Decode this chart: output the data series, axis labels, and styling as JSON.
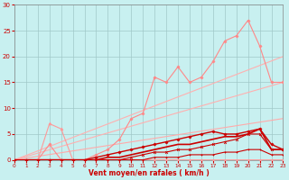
{
  "bg_color": "#c8f0f0",
  "grid_color": "#a0c8c8",
  "xlabel": "Vent moyen/en rafales ( km/h )",
  "xlim": [
    0,
    23
  ],
  "ylim": [
    0,
    30
  ],
  "yticks": [
    0,
    5,
    10,
    15,
    20,
    25,
    30
  ],
  "xticks": [
    0,
    1,
    2,
    3,
    4,
    5,
    6,
    7,
    8,
    9,
    10,
    11,
    12,
    13,
    14,
    15,
    16,
    17,
    18,
    19,
    20,
    21,
    22,
    23
  ],
  "series": [
    {
      "x": [
        0,
        23
      ],
      "y": [
        0,
        15
      ],
      "color": "#ffb0b0",
      "lw": 0.8,
      "marker": null,
      "ms": 0
    },
    {
      "x": [
        0,
        23
      ],
      "y": [
        0,
        20
      ],
      "color": "#ffb0b0",
      "lw": 0.8,
      "marker": null,
      "ms": 0
    },
    {
      "x": [
        0,
        1,
        2,
        3,
        4,
        5,
        6,
        7,
        8,
        9,
        10,
        11,
        12,
        13,
        14,
        15,
        16,
        17,
        18,
        19,
        20,
        21,
        22,
        23
      ],
      "y": [
        0,
        0,
        0,
        3,
        0,
        0,
        0,
        1,
        2,
        4,
        8,
        9,
        16,
        15,
        18,
        15,
        16,
        19,
        23,
        24,
        27,
        22,
        15,
        15
      ],
      "color": "#ff8888",
      "lw": 0.8,
      "marker": "D",
      "ms": 1.5
    },
    {
      "x": [
        0,
        1,
        2,
        3,
        4,
        5,
        6,
        7,
        8,
        9,
        10,
        11,
        12,
        13,
        14,
        15,
        16,
        17,
        18,
        19,
        20,
        21,
        22,
        23
      ],
      "y": [
        0,
        0,
        0,
        7,
        6,
        0,
        0,
        0,
        0,
        0,
        0,
        0,
        0,
        0,
        0,
        0,
        0,
        0,
        0,
        0,
        0,
        0,
        0,
        0
      ],
      "color": "#ff9999",
      "lw": 0.8,
      "marker": "^",
      "ms": 2
    },
    {
      "x": [
        0,
        1,
        2,
        3,
        4,
        5,
        6,
        7,
        8,
        9,
        10,
        11,
        12,
        13,
        14,
        15,
        16,
        17,
        18,
        19,
        20,
        21,
        22,
        23
      ],
      "y": [
        0,
        0,
        0,
        0,
        0,
        0,
        0,
        0,
        0,
        0,
        0,
        0,
        0.5,
        0.5,
        0.5,
        1,
        1,
        1,
        1.5,
        1.5,
        2,
        2,
        1,
        1
      ],
      "color": "#cc0000",
      "lw": 0.8,
      "marker": "+",
      "ms": 2
    },
    {
      "x": [
        0,
        1,
        2,
        3,
        4,
        5,
        6,
        7,
        8,
        9,
        10,
        11,
        12,
        13,
        14,
        15,
        16,
        17,
        18,
        19,
        20,
        21,
        22,
        23
      ],
      "y": [
        0,
        0,
        0,
        0,
        0,
        0,
        0,
        0,
        0,
        0,
        0.5,
        1,
        1.5,
        1.5,
        2,
        2,
        2.5,
        3,
        3.5,
        4,
        5,
        5,
        2,
        2
      ],
      "color": "#cc0000",
      "lw": 0.8,
      "marker": "x",
      "ms": 2
    },
    {
      "x": [
        0,
        1,
        2,
        3,
        4,
        5,
        6,
        7,
        8,
        9,
        10,
        11,
        12,
        13,
        14,
        15,
        16,
        17,
        18,
        19,
        20,
        21,
        22,
        23
      ],
      "y": [
        0,
        0,
        0,
        0,
        0,
        0,
        0,
        0,
        0.5,
        0.5,
        1,
        1.5,
        2,
        2.5,
        3,
        3,
        3.5,
        4,
        4.5,
        4.5,
        5,
        6,
        2,
        2
      ],
      "color": "#cc0000",
      "lw": 1.2,
      "marker": null,
      "ms": 0
    },
    {
      "x": [
        0,
        1,
        2,
        3,
        4,
        5,
        6,
        7,
        8,
        9,
        10,
        11,
        12,
        13,
        14,
        15,
        16,
        17,
        18,
        19,
        20,
        21,
        22,
        23
      ],
      "y": [
        0,
        0,
        0,
        0,
        0,
        0,
        0,
        0.5,
        1,
        1.5,
        2,
        2.5,
        3,
        3.5,
        4,
        4.5,
        5,
        5.5,
        5,
        5,
        5.5,
        6,
        3,
        2
      ],
      "color": "#cc0000",
      "lw": 1.0,
      "marker": "D",
      "ms": 1.5
    },
    {
      "x": [
        0,
        23
      ],
      "y": [
        0,
        8
      ],
      "color": "#ffaaaa",
      "lw": 0.8,
      "marker": null,
      "ms": 0
    }
  ]
}
